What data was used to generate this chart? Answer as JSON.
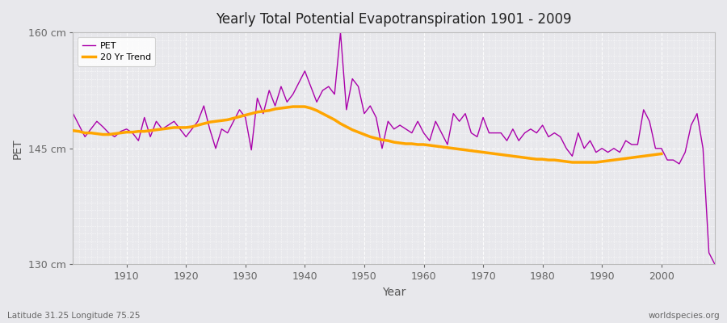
{
  "title": "Yearly Total Potential Evapotranspiration 1901 - 2009",
  "xlabel": "Year",
  "ylabel": "PET",
  "bottom_left": "Latitude 31.25 Longitude 75.25",
  "bottom_right": "worldspecies.org",
  "ylim": [
    130,
    160
  ],
  "xlim": [
    1901,
    2009
  ],
  "yticks": [
    130,
    145,
    160
  ],
  "ytick_labels": [
    "130 cm",
    "145 cm",
    "160 cm"
  ],
  "xticks": [
    1910,
    1920,
    1930,
    1940,
    1950,
    1960,
    1970,
    1980,
    1990,
    2000
  ],
  "pet_color": "#AA00AA",
  "trend_color": "#FFA500",
  "background_color": "#E8E8EC",
  "plot_bg_color": "#E8E8EC",
  "grid_color": "#FFFFFF",
  "legend_labels": [
    "PET",
    "20 Yr Trend"
  ],
  "years": [
    1901,
    1902,
    1903,
    1904,
    1905,
    1906,
    1907,
    1908,
    1909,
    1910,
    1911,
    1912,
    1913,
    1914,
    1915,
    1916,
    1917,
    1918,
    1919,
    1920,
    1921,
    1922,
    1923,
    1924,
    1925,
    1926,
    1927,
    1928,
    1929,
    1930,
    1931,
    1932,
    1933,
    1934,
    1935,
    1936,
    1937,
    1938,
    1939,
    1940,
    1941,
    1942,
    1943,
    1944,
    1945,
    1946,
    1947,
    1948,
    1949,
    1950,
    1951,
    1952,
    1953,
    1954,
    1955,
    1956,
    1957,
    1958,
    1959,
    1960,
    1961,
    1962,
    1963,
    1964,
    1965,
    1966,
    1967,
    1968,
    1969,
    1970,
    1971,
    1972,
    1973,
    1974,
    1975,
    1976,
    1977,
    1978,
    1979,
    1980,
    1981,
    1982,
    1983,
    1984,
    1985,
    1986,
    1987,
    1988,
    1989,
    1990,
    1991,
    1992,
    1993,
    1994,
    1995,
    1996,
    1997,
    1998,
    1999,
    2000,
    2001,
    2002,
    2003,
    2004,
    2005,
    2006,
    2007,
    2008,
    2009
  ],
  "pet_values": [
    149.5,
    148.0,
    146.5,
    147.5,
    148.5,
    147.8,
    147.0,
    146.5,
    147.2,
    147.5,
    147.0,
    146.0,
    149.0,
    146.5,
    148.5,
    147.5,
    148.0,
    148.5,
    147.5,
    146.5,
    147.5,
    148.5,
    150.5,
    147.5,
    145.0,
    147.5,
    147.0,
    148.5,
    150.0,
    149.0,
    144.8,
    151.5,
    149.5,
    152.5,
    150.5,
    153.0,
    151.0,
    152.0,
    153.5,
    155.0,
    153.0,
    151.0,
    152.5,
    153.0,
    152.0,
    160.0,
    150.0,
    154.0,
    153.0,
    149.5,
    150.5,
    149.0,
    145.0,
    148.5,
    147.5,
    148.0,
    147.5,
    147.0,
    148.5,
    147.0,
    146.0,
    148.5,
    147.0,
    145.5,
    149.5,
    148.5,
    149.5,
    147.0,
    146.5,
    149.0,
    147.0,
    147.0,
    147.0,
    146.0,
    147.5,
    146.0,
    147.0,
    147.5,
    147.0,
    148.0,
    146.5,
    147.0,
    146.5,
    145.0,
    144.0,
    147.0,
    145.0,
    146.0,
    144.5,
    145.0,
    144.5,
    145.0,
    144.5,
    146.0,
    145.5,
    145.5,
    150.0,
    148.5,
    145.0,
    145.0,
    143.5,
    143.5,
    143.0,
    144.5,
    148.0,
    149.5,
    145.0,
    131.5,
    130.0
  ],
  "trend_values": [
    147.3,
    147.2,
    147.0,
    147.0,
    146.9,
    146.8,
    146.8,
    146.9,
    147.0,
    147.1,
    147.1,
    147.2,
    147.2,
    147.3,
    147.4,
    147.5,
    147.6,
    147.7,
    147.7,
    147.7,
    147.8,
    148.0,
    148.2,
    148.4,
    148.5,
    148.6,
    148.7,
    148.9,
    149.1,
    149.3,
    149.5,
    149.7,
    149.8,
    149.9,
    150.1,
    150.2,
    150.3,
    150.4,
    150.4,
    150.4,
    150.2,
    149.9,
    149.5,
    149.1,
    148.7,
    148.2,
    147.8,
    147.4,
    147.1,
    146.8,
    146.5,
    146.3,
    146.1,
    146.0,
    145.8,
    145.7,
    145.6,
    145.6,
    145.5,
    145.5,
    145.4,
    145.3,
    145.2,
    145.1,
    145.0,
    144.9,
    144.8,
    144.7,
    144.6,
    144.5,
    144.4,
    144.3,
    144.2,
    144.1,
    144.0,
    143.9,
    143.8,
    143.7,
    143.6,
    143.6,
    143.5,
    143.5,
    143.4,
    143.3,
    143.2,
    143.2,
    143.2,
    143.2,
    143.2,
    143.3,
    143.4,
    143.5,
    143.6,
    143.7,
    143.8,
    143.9,
    144.0,
    144.1,
    144.2,
    144.3
  ]
}
